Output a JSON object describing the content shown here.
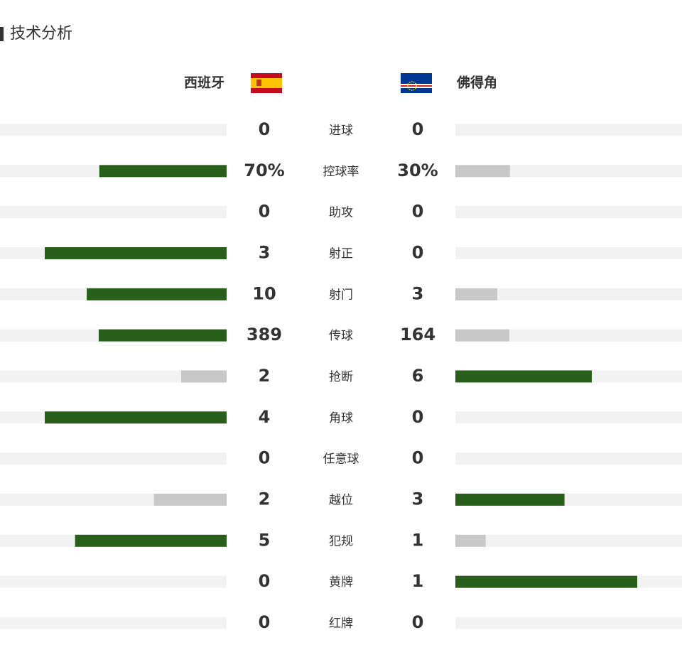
{
  "header": {
    "title": "技术分析"
  },
  "teams": {
    "home": "西班牙",
    "away": "佛得角"
  },
  "stats": [
    {
      "label": "进球",
      "home": 0,
      "away": 0
    },
    {
      "label": "控球率",
      "home": 70,
      "away": 30,
      "home_label": "70%",
      "away_label": "30%"
    },
    {
      "label": "助攻",
      "home": 0,
      "away": 0
    },
    {
      "label": "射正",
      "home": 3,
      "away": 0
    },
    {
      "label": "射门",
      "home": 10,
      "away": 3
    },
    {
      "label": "传球",
      "home": 389,
      "away": 164
    },
    {
      "label": "抢断",
      "home": 2,
      "away": 6
    },
    {
      "label": "角球",
      "home": 4,
      "away": 0
    },
    {
      "label": "任意球",
      "home": 0,
      "away": 0
    },
    {
      "label": "越位",
      "home": 2,
      "away": 3
    },
    {
      "label": "犯规",
      "home": 5,
      "away": 1
    },
    {
      "label": "黄牌",
      "home": 0,
      "away": 1
    },
    {
      "label": "红牌",
      "home": 0,
      "away": 0
    }
  ]
}
